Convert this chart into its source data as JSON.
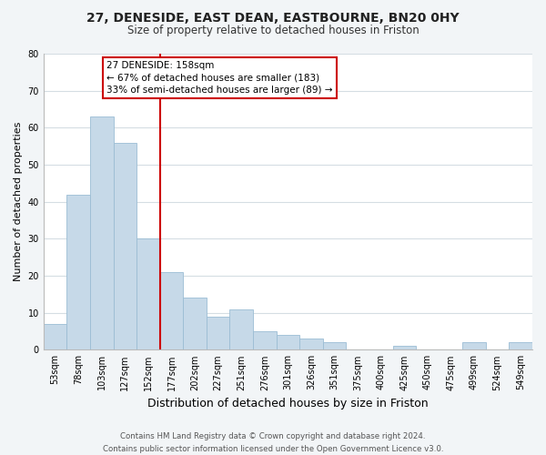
{
  "title": "27, DENESIDE, EAST DEAN, EASTBOURNE, BN20 0HY",
  "subtitle": "Size of property relative to detached houses in Friston",
  "xlabel": "Distribution of detached houses by size in Friston",
  "ylabel": "Number of detached properties",
  "categories": [
    "53sqm",
    "78sqm",
    "103sqm",
    "127sqm",
    "152sqm",
    "177sqm",
    "202sqm",
    "227sqm",
    "251sqm",
    "276sqm",
    "301sqm",
    "326sqm",
    "351sqm",
    "375sqm",
    "400sqm",
    "425sqm",
    "450sqm",
    "475sqm",
    "499sqm",
    "524sqm",
    "549sqm"
  ],
  "values": [
    7,
    42,
    63,
    56,
    30,
    21,
    14,
    9,
    11,
    5,
    4,
    3,
    2,
    0,
    0,
    1,
    0,
    0,
    2,
    0,
    2
  ],
  "bar_color": "#c6d9e8",
  "bar_edge_color": "#9bbdd4",
  "vline_x_idx": 4.5,
  "vline_color": "#cc0000",
  "annotation_title": "27 DENESIDE: 158sqm",
  "annotation_line1": "← 67% of detached houses are smaller (183)",
  "annotation_line2": "33% of semi-detached houses are larger (89) →",
  "annotation_box_facecolor": "white",
  "annotation_box_edgecolor": "#cc0000",
  "ylim": [
    0,
    80
  ],
  "yticks": [
    0,
    10,
    20,
    30,
    40,
    50,
    60,
    70,
    80
  ],
  "footer_line1": "Contains HM Land Registry data © Crown copyright and database right 2024.",
  "footer_line2": "Contains public sector information licensed under the Open Government Licence v3.0.",
  "fig_facecolor": "#f2f5f7",
  "plot_facecolor": "#ffffff",
  "grid_color": "#d5dde3",
  "title_fontsize": 10,
  "subtitle_fontsize": 8.5,
  "xlabel_fontsize": 9,
  "ylabel_fontsize": 8,
  "tick_fontsize": 7,
  "annotation_fontsize": 7.5,
  "footer_fontsize": 6.2
}
